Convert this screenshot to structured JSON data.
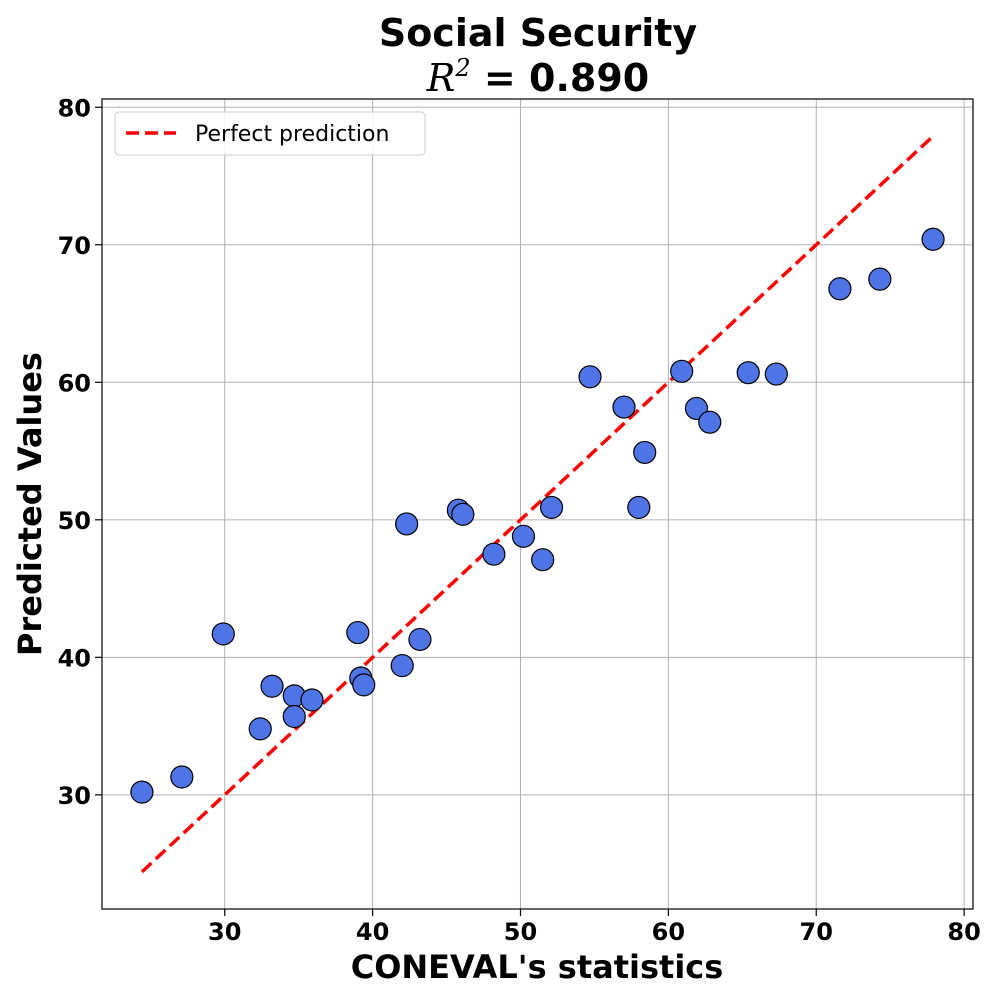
{
  "chart_data": {
    "type": "scatter",
    "title": "Social Security",
    "subtitle_prefix": "R",
    "subtitle_exponent": "2",
    "subtitle_value": " = 0.890",
    "xlabel": "CONEVAL's statistics",
    "ylabel": "Predicted Values",
    "xlim": [
      21.7,
      80.6
    ],
    "ylim": [
      21.7,
      80.6
    ],
    "xticks": [
      "30",
      "40",
      "50",
      "60",
      "70",
      "80"
    ],
    "yticks": [
      "30",
      "40",
      "50",
      "60",
      "70",
      "80"
    ],
    "grid": true,
    "legend_position": "top-left",
    "colors": {
      "points": "#4f74e6",
      "point_edge": "#000000",
      "reference_line": "#ff0000",
      "grid": "#b0b0b0"
    },
    "reference_line": {
      "name": "Perfect prediction",
      "style": "dashed",
      "x": [
        24.4,
        77.8
      ],
      "y": [
        24.4,
        77.8
      ]
    },
    "series": [
      {
        "points": [
          [
            24.4,
            30.2
          ],
          [
            27.1,
            31.3
          ],
          [
            29.9,
            41.7
          ],
          [
            32.4,
            34.8
          ],
          [
            33.2,
            37.9
          ],
          [
            34.7,
            37.2
          ],
          [
            34.7,
            35.7
          ],
          [
            35.9,
            36.9
          ],
          [
            39.0,
            41.8
          ],
          [
            39.2,
            38.5
          ],
          [
            39.4,
            38.0
          ],
          [
            42.0,
            39.4
          ],
          [
            42.3,
            49.7
          ],
          [
            43.2,
            41.3
          ],
          [
            45.8,
            50.7
          ],
          [
            46.1,
            50.4
          ],
          [
            48.2,
            47.5
          ],
          [
            50.2,
            48.8
          ],
          [
            51.5,
            47.1
          ],
          [
            52.1,
            50.9
          ],
          [
            54.7,
            60.4
          ],
          [
            57.0,
            58.2
          ],
          [
            58.0,
            50.9
          ],
          [
            58.4,
            54.9
          ],
          [
            60.9,
            60.8
          ],
          [
            61.9,
            58.1
          ],
          [
            62.8,
            57.1
          ],
          [
            65.4,
            60.7
          ],
          [
            67.3,
            60.6
          ],
          [
            71.6,
            66.8
          ],
          [
            74.3,
            67.5
          ],
          [
            77.9,
            70.4
          ]
        ]
      }
    ]
  }
}
